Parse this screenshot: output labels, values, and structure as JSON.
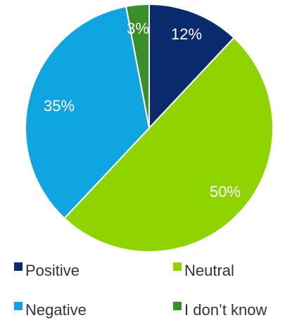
{
  "chart_data": {
    "type": "pie",
    "title": "",
    "start_angle_deg": 0,
    "direction": "clockwise",
    "slices": [
      {
        "label": "Positive",
        "value": 12,
        "display": "12%",
        "color": "#0a2a6e"
      },
      {
        "label": "Neutral",
        "value": 50,
        "display": "50%",
        "color": "#8fd400"
      },
      {
        "label": "Negative",
        "value": 35,
        "display": "35%",
        "color": "#0ea5e0"
      },
      {
        "label": "I don’t know",
        "value": 3,
        "display": "3%",
        "color": "#3a8f2b"
      }
    ],
    "legend": {
      "placement": "bottom",
      "columns": 2
    }
  }
}
